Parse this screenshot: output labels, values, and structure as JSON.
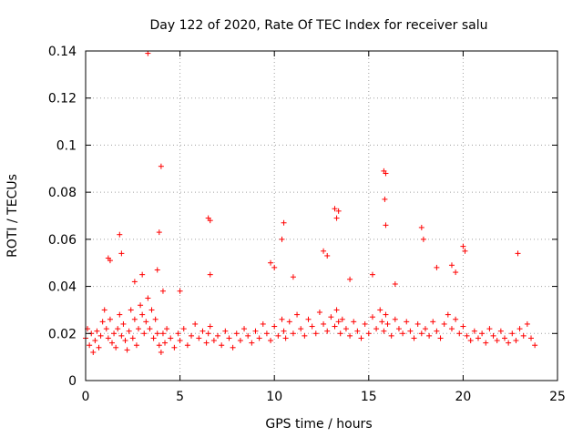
{
  "chart_data": {
    "type": "scatter",
    "title": "Day 122 of 2020, Rate Of TEC Index for receiver salu",
    "xlabel": "GPS time / hours",
    "ylabel": "ROTI / TECUs",
    "xlim": [
      0,
      25
    ],
    "ylim": [
      0,
      0.14
    ],
    "xticks": [
      0,
      5,
      10,
      15,
      20,
      25
    ],
    "xtick_labels": [
      "0",
      "5",
      "10",
      "15",
      "20",
      "25"
    ],
    "yticks": [
      0,
      0.02,
      0.04,
      0.06,
      0.08,
      0.1,
      0.12,
      0.14
    ],
    "ytick_labels": [
      "0",
      "0.02",
      "0.04",
      "0.06",
      "0.08",
      "0.1",
      "0.12",
      "0.14"
    ],
    "grid": true,
    "marker": "+",
    "color": "#ff0000",
    "series": [
      {
        "name": "ROTI",
        "x": [
          0.0,
          0.1,
          0.2,
          0.3,
          0.4,
          0.5,
          0.6,
          0.7,
          0.8,
          0.9,
          1.0,
          1.1,
          1.2,
          1.3,
          1.4,
          1.5,
          1.6,
          1.7,
          1.8,
          1.9,
          2.0,
          2.1,
          2.2,
          2.3,
          2.4,
          2.5,
          2.6,
          2.7,
          2.8,
          2.9,
          3.0,
          3.1,
          3.2,
          3.3,
          3.4,
          3.5,
          3.6,
          3.7,
          3.8,
          3.9,
          4.0,
          4.1,
          4.2,
          4.3,
          4.5,
          4.7,
          4.9,
          5.0,
          5.2,
          5.4,
          5.6,
          5.8,
          6.0,
          6.2,
          6.4,
          6.5,
          6.6,
          6.8,
          7.0,
          7.2,
          7.4,
          7.6,
          7.8,
          8.0,
          8.2,
          8.4,
          8.6,
          8.8,
          9.0,
          9.2,
          9.4,
          9.6,
          9.8,
          10.0,
          10.2,
          10.4,
          10.5,
          10.6,
          10.8,
          11.0,
          11.2,
          11.4,
          11.6,
          11.8,
          12.0,
          12.2,
          12.4,
          12.6,
          12.8,
          13.0,
          13.2,
          13.3,
          13.4,
          13.5,
          13.6,
          13.8,
          14.0,
          14.2,
          14.4,
          14.6,
          14.8,
          15.0,
          15.2,
          15.4,
          15.6,
          15.7,
          15.8,
          15.9,
          16.0,
          16.2,
          16.4,
          16.6,
          16.8,
          17.0,
          17.2,
          17.4,
          17.6,
          17.8,
          18.0,
          18.2,
          18.4,
          18.6,
          18.8,
          19.0,
          19.2,
          19.4,
          19.6,
          19.8,
          20.0,
          20.2,
          20.4,
          20.6,
          20.8,
          21.0,
          21.2,
          21.4,
          21.6,
          21.8,
          22.0,
          22.2,
          22.4,
          22.6,
          22.8,
          23.0,
          23.2,
          23.4,
          23.6,
          23.8,
          3.3,
          4.0,
          3.9,
          6.5,
          6.6,
          10.5,
          10.4,
          13.2,
          13.4,
          13.3,
          15.8,
          15.9,
          15.85,
          15.9,
          17.8,
          17.9,
          1.8,
          1.9,
          1.2,
          1.3,
          3.8,
          4.1,
          9.8,
          10.0,
          12.6,
          12.8,
          15.2,
          19.4,
          19.6,
          20.0,
          20.1,
          22.9,
          3.0,
          2.6,
          5.0,
          6.6,
          11.0,
          14.0,
          16.4,
          18.6
        ],
        "y": [
          0.018,
          0.022,
          0.015,
          0.02,
          0.012,
          0.017,
          0.021,
          0.014,
          0.019,
          0.025,
          0.03,
          0.022,
          0.018,
          0.026,
          0.016,
          0.02,
          0.014,
          0.022,
          0.028,
          0.019,
          0.024,
          0.017,
          0.013,
          0.021,
          0.03,
          0.018,
          0.026,
          0.015,
          0.022,
          0.032,
          0.028,
          0.02,
          0.025,
          0.035,
          0.022,
          0.03,
          0.018,
          0.026,
          0.02,
          0.015,
          0.012,
          0.02,
          0.016,
          0.022,
          0.018,
          0.014,
          0.02,
          0.017,
          0.022,
          0.015,
          0.019,
          0.024,
          0.018,
          0.021,
          0.016,
          0.02,
          0.023,
          0.017,
          0.019,
          0.015,
          0.021,
          0.018,
          0.014,
          0.02,
          0.017,
          0.022,
          0.019,
          0.016,
          0.021,
          0.018,
          0.024,
          0.02,
          0.017,
          0.023,
          0.019,
          0.026,
          0.021,
          0.018,
          0.025,
          0.02,
          0.028,
          0.022,
          0.019,
          0.026,
          0.023,
          0.02,
          0.029,
          0.024,
          0.021,
          0.027,
          0.023,
          0.03,
          0.025,
          0.02,
          0.026,
          0.022,
          0.019,
          0.025,
          0.021,
          0.018,
          0.024,
          0.02,
          0.027,
          0.022,
          0.03,
          0.025,
          0.021,
          0.028,
          0.024,
          0.019,
          0.026,
          0.022,
          0.02,
          0.025,
          0.021,
          0.018,
          0.024,
          0.02,
          0.022,
          0.019,
          0.025,
          0.021,
          0.018,
          0.024,
          0.028,
          0.022,
          0.026,
          0.02,
          0.023,
          0.019,
          0.017,
          0.021,
          0.018,
          0.02,
          0.016,
          0.022,
          0.019,
          0.017,
          0.021,
          0.018,
          0.016,
          0.02,
          0.017,
          0.022,
          0.019,
          0.024,
          0.018,
          0.015,
          0.139,
          0.091,
          0.063,
          0.069,
          0.068,
          0.067,
          0.06,
          0.073,
          0.072,
          0.069,
          0.089,
          0.088,
          0.077,
          0.066,
          0.065,
          0.06,
          0.062,
          0.054,
          0.052,
          0.051,
          0.047,
          0.038,
          0.05,
          0.048,
          0.055,
          0.053,
          0.045,
          0.049,
          0.046,
          0.057,
          0.055,
          0.054,
          0.045,
          0.042,
          0.038,
          0.045,
          0.044,
          0.043,
          0.041,
          0.048
        ]
      }
    ]
  }
}
